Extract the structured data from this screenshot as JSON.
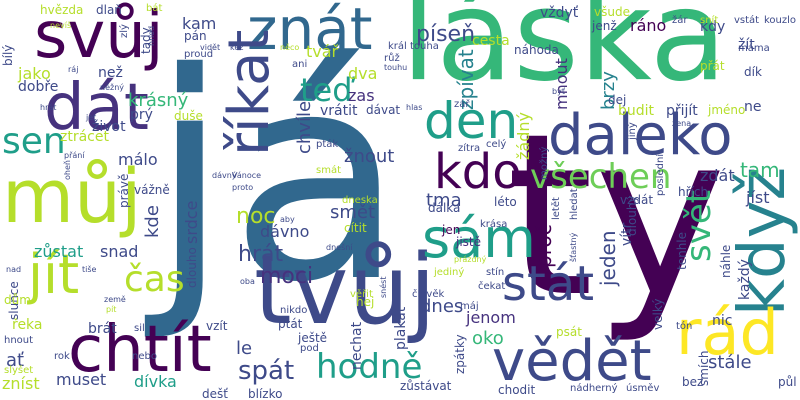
{
  "palette": {
    "background": "#ffffff",
    "dark_purple": "#440154",
    "purple": "#46327e",
    "indigo": "#3e4a89",
    "steel_blue": "#31688e",
    "teal_blue": "#26828e",
    "teal": "#1f9e89",
    "green": "#35b779",
    "light_green": "#6ece58",
    "lime": "#b5de2b",
    "yellow": "#fde725"
  },
  "words": [
    "já",
    "ty",
    "láska",
    "tvůj",
    "můj",
    "svůj",
    "dát",
    "znát",
    "říkat",
    "daleko",
    "když",
    "vědět",
    "chtít",
    "jít",
    "sám",
    "den",
    "rád",
    "kdo",
    "stát",
    "hodně",
    "všechen",
    "čas",
    "sen",
    "teď",
    "píseň",
    "zpívat",
    "svět",
    "hrát",
    "moci",
    "spát",
    "smět",
    "noc",
    "dnes",
    "krásný",
    "tvář",
    "zůstat",
    "snad",
    "chvíle",
    "proč",
    "jeden",
    "brzy",
    "mnout",
    "žádný",
    "ráno",
    "tam",
    "jenom",
    "oko",
    "zdát",
    "jíst",
    "žít",
    "jako",
    "než",
    "kam",
    "dva",
    "zas",
    "cesta",
    "málo",
    "žnout",
    "tma",
    "dálka",
    "kde",
    "srdce",
    "dávno",
    "dlouho",
    "plakat",
    "jen",
    "nic",
    "každý",
    "vítr",
    "velký",
    "stále",
    "muset",
    "dívka",
    "zníst",
    "ať",
    "řeka",
    "slunce",
    "brát",
    "ptát",
    "ještě",
    "le",
    "léto",
    "vzdát",
    "všude",
    "jistě",
    "kdy",
    "hvězda",
    "dlaň",
    "bát",
    "pán",
    "ne",
    "dobře",
    "prý",
    "život",
    "duše",
    "ztrácet",
    "vrátit",
    "dávat",
    "zář",
    "dej",
    "budit",
    "přijít",
    "vždyť",
    "jenž",
    "náhoda",
    "král",
    "touha",
    "růž",
    "ani",
    "proud",
    "vážně",
    "právě",
    "celý",
    "možný",
    "zítra",
    "smát",
    "pták",
    "cítit",
    "hej",
    "dům",
    "nechat",
    "pod",
    "bez",
    "smích",
    "dlouhý",
    "krása",
    "čekat",
    "stín",
    "člověk",
    "sil",
    "hnout",
    "slyšet",
    "rok",
    "nebo",
    "dešť",
    "blízko",
    "zůstávat",
    "chodit",
    "nádherný",
    "úsměv",
    "půl",
    "tón",
    "jméno",
    "dík",
    "máma",
    "kouzlo",
    "vstát",
    "snít",
    "žár",
    "nevíš",
    "žena",
    "hřích",
    "náhle",
    "tenhle",
    "poslední",
    "jiný",
    "hledat",
    "letět",
    "psát",
    "zpátky",
    "máj",
    "prázdný",
    "jediný",
    "nikdo",
    "věřit",
    "vzít",
    "země",
    "oba",
    "dnešní",
    "dneska",
    "proto",
    "aby",
    "bílý",
    "ráj",
    "zlý",
    "hned",
    "vidět",
    "kéž",
    "něco",
    "tady",
    "něžný",
    "přání",
    "Vánoce",
    "dávný",
    "oheň",
    "pít",
    "nad",
    "tiše",
    "šťastný",
    "touhu",
    "jet",
    "hrát",
    "hlas",
    "snést",
    "byť",
    "přát"
  ]
}
